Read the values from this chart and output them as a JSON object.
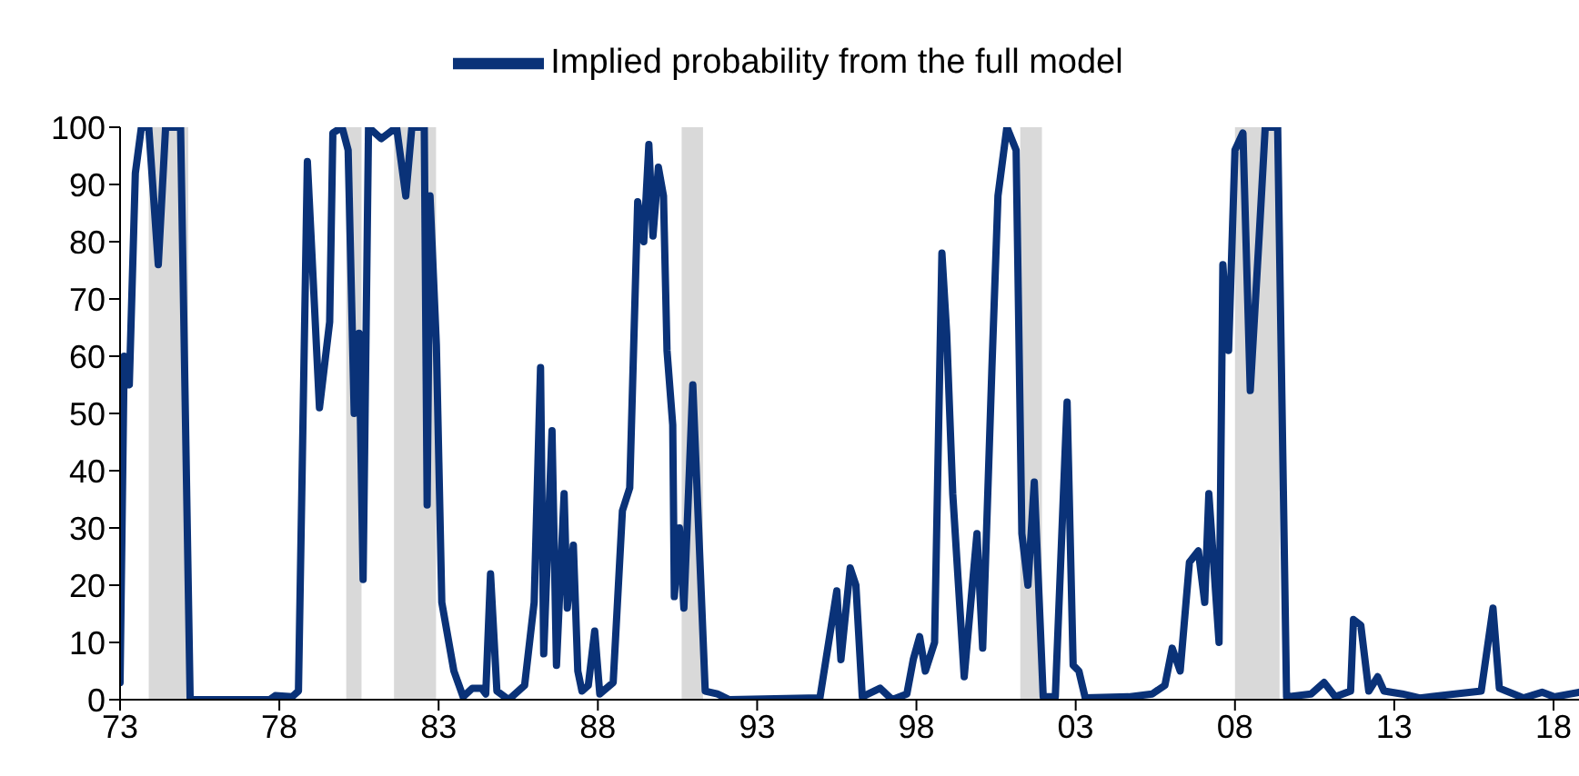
{
  "chart_data": {
    "type": "line",
    "legend": "top",
    "marker": "none",
    "line_style": "solid",
    "grid": false,
    "xlim": [
      1973,
      2018.8
    ],
    "xticks": [
      {
        "value": 1973,
        "label": "73"
      },
      {
        "value": 1978,
        "label": "78"
      },
      {
        "value": 1983,
        "label": "83"
      },
      {
        "value": 1988,
        "label": "88"
      },
      {
        "value": 1993,
        "label": "93"
      },
      {
        "value": 1998,
        "label": "98"
      },
      {
        "value": 2003,
        "label": "03"
      },
      {
        "value": 2008,
        "label": "08"
      },
      {
        "value": 2013,
        "label": "13"
      },
      {
        "value": 2018,
        "label": "18"
      }
    ],
    "ylim": [
      0,
      100
    ],
    "yticks": [
      0,
      10,
      20,
      30,
      40,
      50,
      60,
      70,
      80,
      90,
      100
    ],
    "bands": [
      {
        "axis": "x",
        "from": 1973.9,
        "to": 1975.14,
        "color": "#d9d9d9"
      },
      {
        "axis": "x",
        "from": 1980.1,
        "to": 1980.58,
        "color": "#d9d9d9"
      },
      {
        "axis": "x",
        "from": 1981.6,
        "to": 1982.92,
        "color": "#d9d9d9"
      },
      {
        "axis": "x",
        "from": 1990.63,
        "to": 1991.3,
        "color": "#d9d9d9"
      },
      {
        "axis": "x",
        "from": 2001.26,
        "to": 2001.94,
        "color": "#d9d9d9"
      },
      {
        "axis": "x",
        "from": 2008.0,
        "to": 2009.4,
        "color": "#d9d9d9"
      }
    ],
    "series": [
      {
        "name": "Implied probability from the full model",
        "color": "#0a3278",
        "x": [
          1973.0,
          1973.13,
          1973.29,
          1973.48,
          1973.67,
          1973.9,
          1974.2,
          1974.43,
          1974.9,
          1975.2,
          1977.7,
          1977.87,
          1978.4,
          1978.6,
          1978.88,
          1979.26,
          1979.58,
          1979.68,
          1979.97,
          1980.16,
          1980.35,
          1980.5,
          1980.63,
          1980.8,
          1981.2,
          1981.68,
          1981.97,
          1982.16,
          1982.55,
          1982.64,
          1982.73,
          1982.93,
          1983.1,
          1983.48,
          1983.77,
          1984.06,
          1984.35,
          1984.48,
          1984.63,
          1984.83,
          1985.2,
          1985.7,
          1986.0,
          1986.2,
          1986.3,
          1986.56,
          1986.7,
          1986.94,
          1987.04,
          1987.23,
          1987.37,
          1987.5,
          1987.7,
          1987.9,
          1988.06,
          1988.48,
          1988.77,
          1989.0,
          1989.25,
          1989.44,
          1989.6,
          1989.73,
          1989.9,
          1990.06,
          1990.17,
          1990.35,
          1990.4,
          1990.56,
          1990.7,
          1990.98,
          1991.37,
          1991.75,
          1992.13,
          1994.97,
          1995.5,
          1995.63,
          1995.92,
          1996.1,
          1996.3,
          1996.86,
          1997.24,
          1997.7,
          1997.9,
          1998.1,
          1998.28,
          1998.57,
          1998.8,
          1998.95,
          1999.14,
          1999.5,
          1999.9,
          2000.08,
          2000.37,
          2000.56,
          2000.84,
          2001.13,
          2001.31,
          2001.5,
          2001.7,
          2001.98,
          2002.36,
          2002.73,
          2002.92,
          2003.1,
          2003.3,
          2004.66,
          2005.4,
          2005.8,
          2006.03,
          2006.28,
          2006.57,
          2006.85,
          2007.05,
          2007.18,
          2007.5,
          2007.62,
          2007.8,
          2008.0,
          2008.25,
          2008.48,
          2008.76,
          2008.95,
          2009.34,
          2009.62,
          2010.39,
          2010.8,
          2011.15,
          2011.63,
          2011.72,
          2011.95,
          2012.2,
          2012.48,
          2012.68,
          2013.25,
          2013.8,
          2015.73,
          2016.1,
          2016.3,
          2017.06,
          2017.64,
          2018.02,
          2018.8
        ],
        "values": [
          3,
          60,
          55,
          92,
          100,
          100,
          76,
          100,
          100,
          0,
          0,
          0.7,
          0.5,
          1.5,
          94,
          51,
          66,
          99,
          100,
          96,
          50,
          64,
          21,
          100,
          98,
          100,
          88,
          100,
          100,
          34,
          88,
          62,
          17,
          5,
          0.5,
          2,
          2,
          1,
          22,
          1.5,
          0,
          2.5,
          17,
          58,
          8,
          47,
          6,
          36,
          16,
          27,
          5,
          1.5,
          2.5,
          12,
          1,
          3,
          33,
          37,
          87,
          80,
          97,
          81,
          93,
          88,
          61,
          48,
          18,
          30,
          16,
          55,
          1.5,
          1,
          0,
          0.3,
          19,
          7,
          23,
          20,
          0.5,
          2,
          0,
          1,
          7,
          11,
          5,
          10,
          78,
          64,
          36,
          4,
          29,
          9,
          58,
          88,
          100,
          96,
          29,
          20,
          38,
          0.5,
          0.5,
          52,
          6,
          5,
          0.3,
          0.5,
          1,
          2.5,
          9,
          5,
          24,
          26,
          17,
          36,
          10,
          76,
          61,
          96,
          99,
          54,
          81,
          100,
          100,
          0.5,
          1,
          3,
          0.5,
          1.5,
          14,
          13,
          1.5,
          4,
          1.5,
          1,
          0.3,
          1.5,
          16,
          2,
          0.3,
          1.3,
          0.5,
          1.3
        ]
      }
    ]
  }
}
